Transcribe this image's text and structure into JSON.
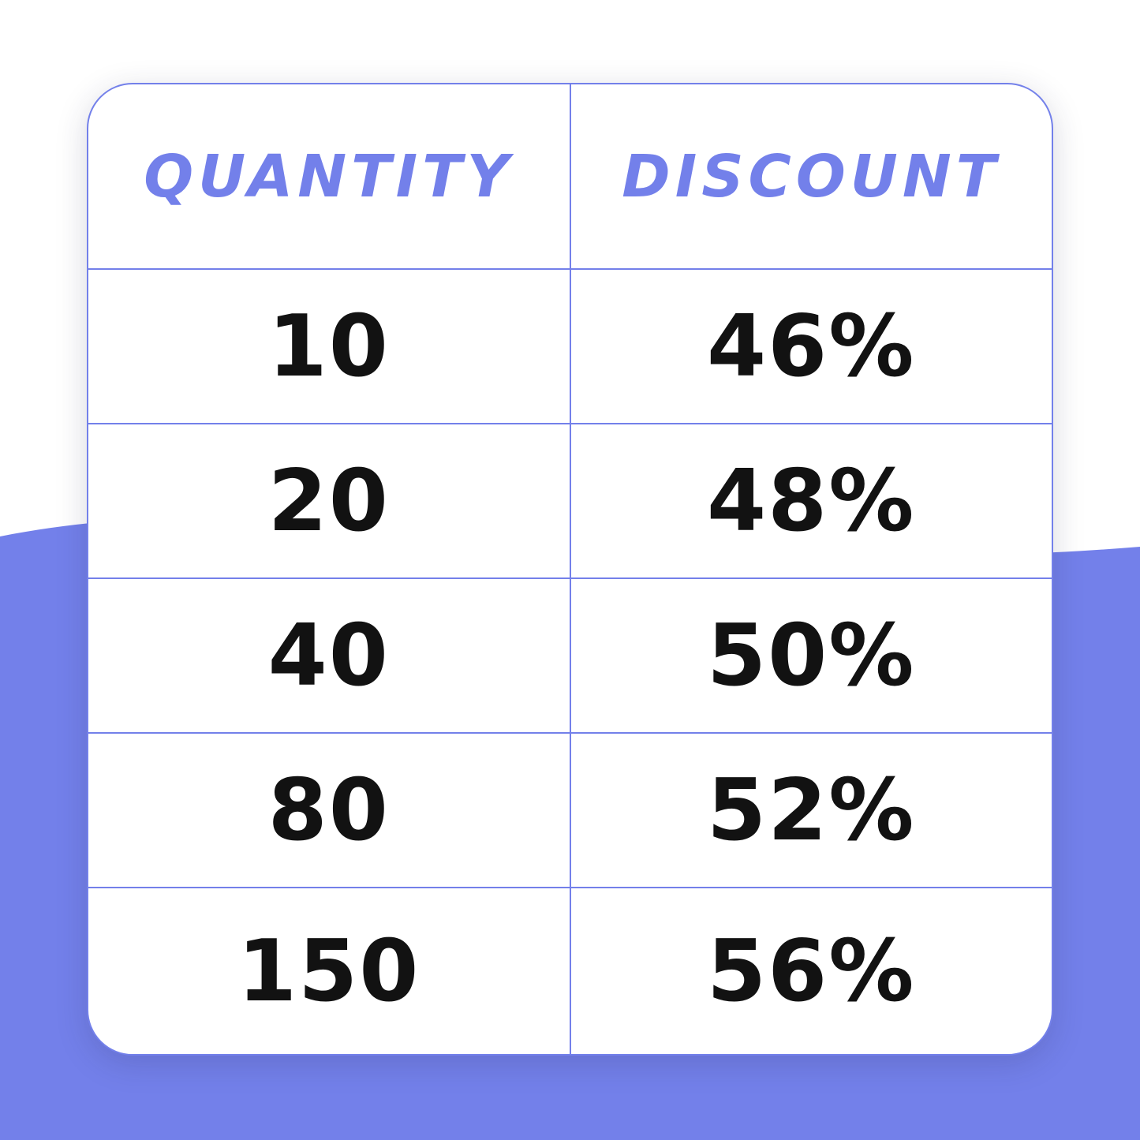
{
  "colors": {
    "accent": "#7380ea",
    "text": "#121212",
    "background": "#ffffff"
  },
  "table": {
    "headers": [
      "QUANTITY",
      "DISCOUNT"
    ],
    "rows": [
      {
        "quantity": "10",
        "discount": "46%"
      },
      {
        "quantity": "20",
        "discount": "48%"
      },
      {
        "quantity": "40",
        "discount": "50%"
      },
      {
        "quantity": "80",
        "discount": "52%"
      },
      {
        "quantity": "150",
        "discount": "56%"
      }
    ]
  }
}
